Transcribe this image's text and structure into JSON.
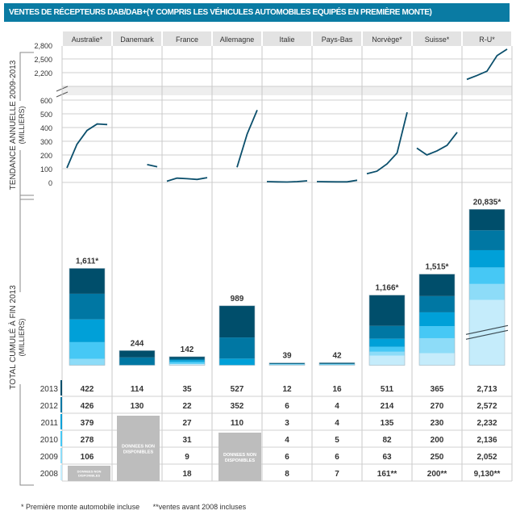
{
  "title": "VENTES DE RÉCEPTEURS DAB/DAB+(Y COMPRIS LES VÉHICULES AUTOMOBILES EQUIPÉS EN PREMIÈRE MONTE)",
  "chart_data": [
    {
      "type": "line",
      "ylabel": "TENDANCE ANNUELLE 2009-2013",
      "ylabel_unit": "(MILLIERS)",
      "y_ticks_upper": [
        "2,800",
        "2,500",
        "2,200"
      ],
      "y_ticks_lower": [
        "600",
        "500",
        "400",
        "300",
        "200",
        "100",
        "0"
      ],
      "axis_break": true,
      "x": [
        2009,
        2010,
        2011,
        2012,
        2013
      ],
      "grid": true,
      "line_color": "#0b4f6c"
    },
    {
      "type": "bar",
      "stacked": true,
      "ylabel": "TOTAL CUMULÉ À FIN 2013",
      "ylabel_unit": "(MILLIERS)",
      "totals": [
        "1,611*",
        "244",
        "142",
        "989",
        "39",
        "42",
        "1,166*",
        "1,515*",
        "20,835*"
      ],
      "axis_break_on": "R-U*"
    }
  ],
  "countries": [
    "Australie*",
    "Danemark",
    "France",
    "Allemagne",
    "Italie",
    "Pays-Bas",
    "Norvège*",
    "Suisse*",
    "R-U*"
  ],
  "years": [
    "2013",
    "2012",
    "2011",
    "2010",
    "2009",
    "2008"
  ],
  "year_colors": {
    "2013": "#004e6b",
    "2012": "#0077a3",
    "2011": "#00a0d8",
    "2010": "#46c8f5",
    "2009": "#8ddcf8",
    "2008": "#c5ecfb"
  },
  "table": {
    "Australie*": {
      "2013": 422,
      "2012": 426,
      "2011": 379,
      "2010": 278,
      "2009": 106,
      "2008": null
    },
    "Danemark": {
      "2013": 114,
      "2012": 130,
      "2011": null,
      "2010": null,
      "2009": null,
      "2008": null
    },
    "France": {
      "2013": 35,
      "2012": 22,
      "2011": 27,
      "2010": 31,
      "2009": 9,
      "2008": 18
    },
    "Allemagne": {
      "2013": 527,
      "2012": 352,
      "2011": 110,
      "2010": null,
      "2009": null,
      "2008": null
    },
    "Italie": {
      "2013": 12,
      "2012": 6,
      "2011": 3,
      "2010": 4,
      "2009": 6,
      "2008": 8
    },
    "Pays-Bas": {
      "2013": 16,
      "2012": 4,
      "2011": 4,
      "2010": 5,
      "2009": 6,
      "2008": 7
    },
    "Norvège*": {
      "2013": 511,
      "2012": 214,
      "2011": 135,
      "2010": 82,
      "2009": 63,
      "2008": 161
    },
    "Suisse*": {
      "2013": 365,
      "2012": 270,
      "2011": 230,
      "2010": 200,
      "2009": 250,
      "2008": 200
    },
    "R-U*": {
      "2013": 2713,
      "2012": 2572,
      "2011": 2232,
      "2010": 2136,
      "2009": 2052,
      "2008": 9130
    }
  },
  "table_labels": {
    "Norvège*": {
      "2008": "161**"
    },
    "Suisse*": {
      "2008": "200**"
    },
    "R-U*": {
      "2008": "9,130**"
    }
  },
  "na_label_line1": "DONNEES NON",
  "na_label_line2": "DISPONIBLES",
  "na_label_small_line1": "DONNEES NON",
  "footer": {
    "note1": "* Première monte automobile incluse",
    "note2": "**ventes avant 2008 incluses"
  }
}
